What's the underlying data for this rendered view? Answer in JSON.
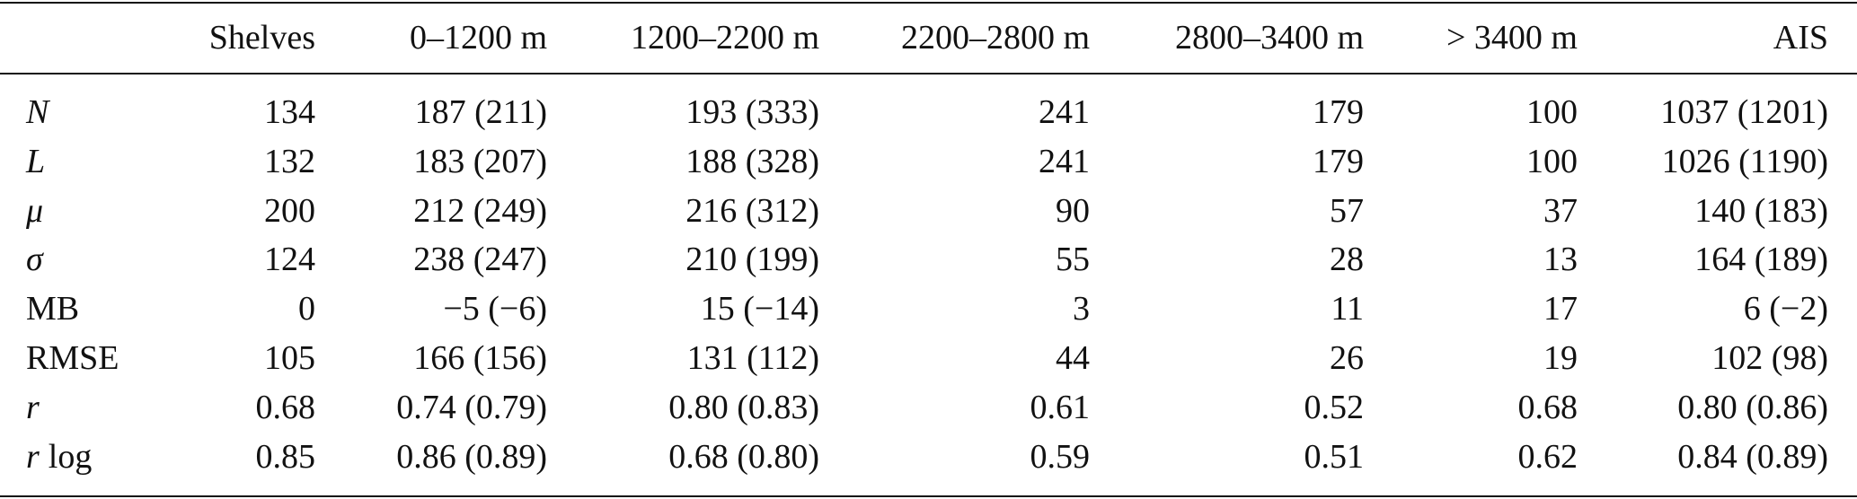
{
  "table": {
    "header": [
      "Shelves",
      "0–1200 m",
      "1200–2200 m",
      "2200–2800 m",
      "2800–3400 m",
      "> 3400 m",
      "AIS"
    ],
    "rows": [
      {
        "label": [
          {
            "text": "N",
            "style": "italic"
          }
        ],
        "cells": [
          "134",
          "187 (211)",
          "193 (333)",
          "241",
          "179",
          "100",
          "1037 (1201)"
        ]
      },
      {
        "label": [
          {
            "text": "L",
            "style": "italic"
          }
        ],
        "cells": [
          "132",
          "183 (207)",
          "188 (328)",
          "241",
          "179",
          "100",
          "1026 (1190)"
        ]
      },
      {
        "label": [
          {
            "text": "μ",
            "style": "italic"
          }
        ],
        "cells": [
          "200",
          "212 (249)",
          "216 (312)",
          "90",
          "57",
          "37",
          "140 (183)"
        ]
      },
      {
        "label": [
          {
            "text": "σ",
            "style": "italic"
          }
        ],
        "cells": [
          "124",
          "238 (247)",
          "210 (199)",
          "55",
          "28",
          "13",
          "164 (189)"
        ]
      },
      {
        "label": [
          {
            "text": "MB",
            "style": "normal"
          }
        ],
        "cells": [
          "0",
          "−5 (−6)",
          "15 (−14)",
          "3",
          "11",
          "17",
          "6 (−2)"
        ]
      },
      {
        "label": [
          {
            "text": "RMSE",
            "style": "normal"
          }
        ],
        "cells": [
          "105",
          "166 (156)",
          "131 (112)",
          "44",
          "26",
          "19",
          "102 (98)"
        ]
      },
      {
        "label": [
          {
            "text": "r",
            "style": "italic"
          }
        ],
        "cells": [
          "0.68",
          "0.74 (0.79)",
          "0.80 (0.83)",
          "0.61",
          "0.52",
          "0.68",
          "0.80 (0.86)"
        ]
      },
      {
        "label": [
          {
            "text": "r",
            "style": "italic"
          },
          {
            "text": "log",
            "style": "normal"
          }
        ],
        "cells": [
          "0.85",
          "0.86 (0.89)",
          "0.68 (0.80)",
          "0.59",
          "0.51",
          "0.62",
          "0.84 (0.89)"
        ]
      }
    ]
  }
}
